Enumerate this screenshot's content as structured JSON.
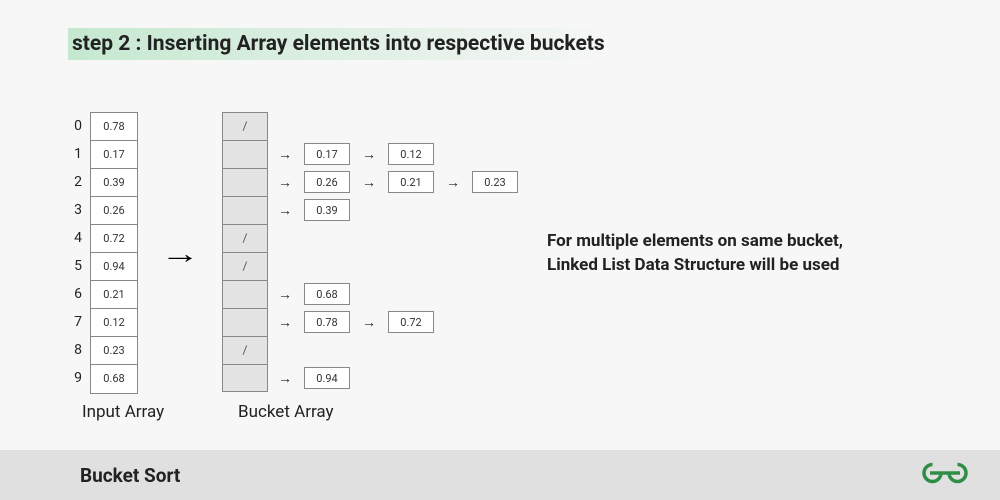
{
  "title": "step 2 : Inserting Array elements into respective buckets",
  "indices": [
    "0",
    "1",
    "2",
    "3",
    "4",
    "5",
    "6",
    "7",
    "8",
    "9"
  ],
  "input_array": [
    "0.78",
    "0.17",
    "0.39",
    "0.26",
    "0.72",
    "0.94",
    "0.21",
    "0.12",
    "0.23",
    "0.68"
  ],
  "input_label": "Input Array",
  "bucket_label": "Bucket Array",
  "buckets": [
    {
      "head": "/",
      "chain": []
    },
    {
      "head": "",
      "chain": [
        "0.17",
        "0.12"
      ]
    },
    {
      "head": "",
      "chain": [
        "0.26",
        "0.21",
        "0.23"
      ]
    },
    {
      "head": "",
      "chain": [
        "0.39"
      ]
    },
    {
      "head": "/",
      "chain": []
    },
    {
      "head": "/",
      "chain": []
    },
    {
      "head": "",
      "chain": [
        "0.68"
      ]
    },
    {
      "head": "",
      "chain": [
        "0.78",
        "0.72"
      ]
    },
    {
      "head": "/",
      "chain": []
    },
    {
      "head": "",
      "chain": [
        "0.94"
      ]
    }
  ],
  "note_line1": "For multiple elements on same bucket,",
  "note_line2": "Linked List Data Structure will be used",
  "footer_title": "Bucket Sort",
  "colors": {
    "bg": "#f7f7f7",
    "title_grad": "#c5e8d0",
    "cell_border": "#888888",
    "bucket_fill": "#e3e3e3",
    "footer_bg": "#e0e0e0",
    "logo_green": "#2f8d46"
  }
}
